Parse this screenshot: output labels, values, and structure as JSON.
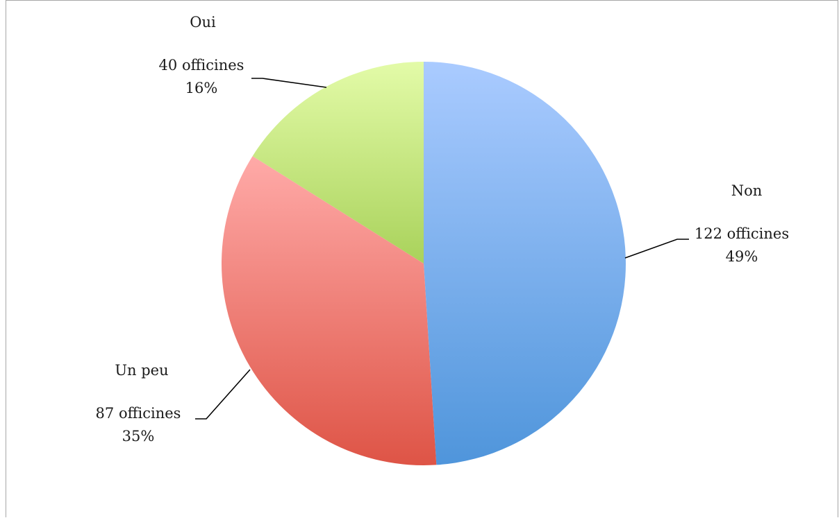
{
  "chart_data": {
    "type": "pie",
    "title": "",
    "slices": [
      {
        "name": "Non",
        "count_label": "122 officines",
        "percent_label": "49%",
        "value": 122,
        "color_top": "#aacbff",
        "color_bottom": "#4f95db"
      },
      {
        "name": "Un peu",
        "count_label": "87 officines",
        "percent_label": "35%",
        "value": 87,
        "color_top": "#ffaaa8",
        "color_bottom": "#de5446"
      },
      {
        "name": "Oui",
        "count_label": "40 officines",
        "percent_label": "16%",
        "value": 40,
        "color_top": "#e3fba8",
        "color_bottom": "#a9d25b"
      }
    ],
    "legend": "none",
    "data_labels": "outside-with-leader-lines"
  }
}
